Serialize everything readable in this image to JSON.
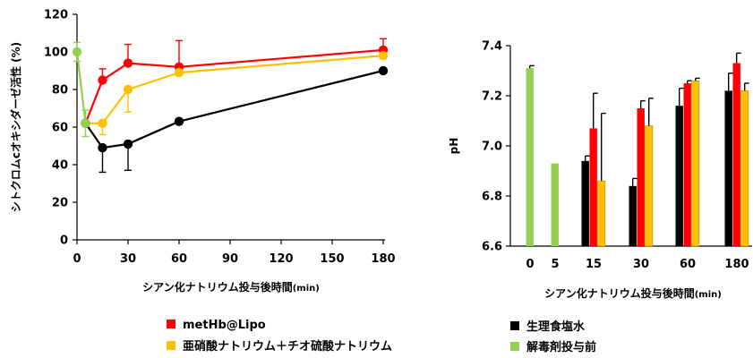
{
  "chart_data": [
    {
      "type": "line",
      "ylabel": "シトクロムcオキシダーゼ活性 (%)",
      "xlabel": "シアン化ナトリウム投与後時間",
      "xlabel_unit": "(min)",
      "xlim": [
        0,
        180
      ],
      "ylim": [
        0,
        120
      ],
      "x_ticks": [
        "0",
        "30",
        "60",
        "90",
        "120",
        "150",
        "180"
      ],
      "y_ticks": [
        "0",
        "20",
        "40",
        "60",
        "80",
        "100",
        "120"
      ],
      "grid": false,
      "series": [
        {
          "name": "metHb@Lipo",
          "color": "#ff0000",
          "points": [
            {
              "x": 5,
              "y": 62,
              "err": 0
            },
            {
              "x": 15,
              "y": 85,
              "err": 6
            },
            {
              "x": 30,
              "y": 94,
              "err": 10
            },
            {
              "x": 60,
              "y": 92,
              "err": 14
            },
            {
              "x": 180,
              "y": 101,
              "err": 6
            }
          ],
          "err_direction": "up"
        },
        {
          "name": "亜硝酸ナトリウム＋チオ硫酸ナトリウム",
          "color": "#ffc000",
          "points": [
            {
              "x": 5,
              "y": 62,
              "err": 0
            },
            {
              "x": 15,
              "y": 62,
              "err": 6
            },
            {
              "x": 30,
              "y": 80,
              "err": 12
            },
            {
              "x": 60,
              "y": 89,
              "err": 0
            },
            {
              "x": 180,
              "y": 98,
              "err": 0
            }
          ],
          "err_direction": "down"
        },
        {
          "name": "生理食塩水",
          "color": "#000000",
          "points": [
            {
              "x": 5,
              "y": 62,
              "err": 0
            },
            {
              "x": 15,
              "y": 49,
              "err": 13
            },
            {
              "x": 30,
              "y": 51,
              "err": 14
            },
            {
              "x": 60,
              "y": 63,
              "err": 0
            },
            {
              "x": 180,
              "y": 90,
              "err": 0
            }
          ],
          "err_direction": "down"
        },
        {
          "name": "解毒剤投与前",
          "color": "#92d050",
          "points": [
            {
              "x": 0,
              "y": 100,
              "err": 5
            },
            {
              "x": 5,
              "y": 62,
              "err": 7
            }
          ],
          "err_direction": "both"
        }
      ]
    },
    {
      "type": "bar",
      "ylabel": "pH",
      "xlabel": "シアン化ナトリウム投与後時間",
      "xlabel_unit": "(min)",
      "ylim": [
        6.6,
        7.4
      ],
      "y_ticks": [
        "6.6",
        "6.8",
        "7.0",
        "7.2",
        "7.4"
      ],
      "categories": [
        "0",
        "5",
        "15",
        "30",
        "60",
        "180"
      ],
      "grid": false,
      "groups": [
        {
          "category": "0",
          "bars": [
            {
              "series": "解毒剤投与前",
              "value": 7.31,
              "err": 0.01
            }
          ]
        },
        {
          "category": "5",
          "bars": [
            {
              "series": "解毒剤投与前",
              "value": 6.93,
              "err": 0.0
            }
          ]
        },
        {
          "category": "15",
          "bars": [
            {
              "series": "生理食塩水",
              "value": 6.94,
              "err": 0.02
            },
            {
              "series": "metHb@Lipo",
              "value": 7.07,
              "err": 0.14
            },
            {
              "series": "亜硝酸ナトリウム＋チオ硫酸ナトリウム",
              "value": 6.86,
              "err": 0.27
            }
          ]
        },
        {
          "category": "30",
          "bars": [
            {
              "series": "生理食塩水",
              "value": 6.84,
              "err": 0.03
            },
            {
              "series": "metHb@Lipo",
              "value": 7.15,
              "err": 0.03
            },
            {
              "series": "亜硝酸ナトリウム＋チオ硫酸ナトリウム",
              "value": 7.08,
              "err": 0.11
            }
          ]
        },
        {
          "category": "60",
          "bars": [
            {
              "series": "生理食塩水",
              "value": 7.16,
              "err": 0.07
            },
            {
              "series": "metHb@Lipo",
              "value": 7.25,
              "err": 0.01
            },
            {
              "series": "亜硝酸ナトリウム＋チオ硫酸ナトリウム",
              "value": 7.26,
              "err": 0.01
            }
          ]
        },
        {
          "category": "180",
          "bars": [
            {
              "series": "生理食塩水",
              "value": 7.22,
              "err": 0.07
            },
            {
              "series": "metHb@Lipo",
              "value": 7.33,
              "err": 0.04
            },
            {
              "series": "亜硝酸ナトリウム＋チオ硫酸ナトリウム",
              "value": 7.22,
              "err": 0.03
            }
          ]
        }
      ]
    }
  ],
  "legend": {
    "items": [
      {
        "label": "metHb@Lipo",
        "color": "#ff0000"
      },
      {
        "label": "亜硝酸ナトリウム＋チオ硫酸ナトリウム",
        "color": "#ffc000"
      },
      {
        "label": "生理食塩水",
        "color": "#000000"
      },
      {
        "label": "解毒剤投与前",
        "color": "#92d050"
      }
    ]
  }
}
